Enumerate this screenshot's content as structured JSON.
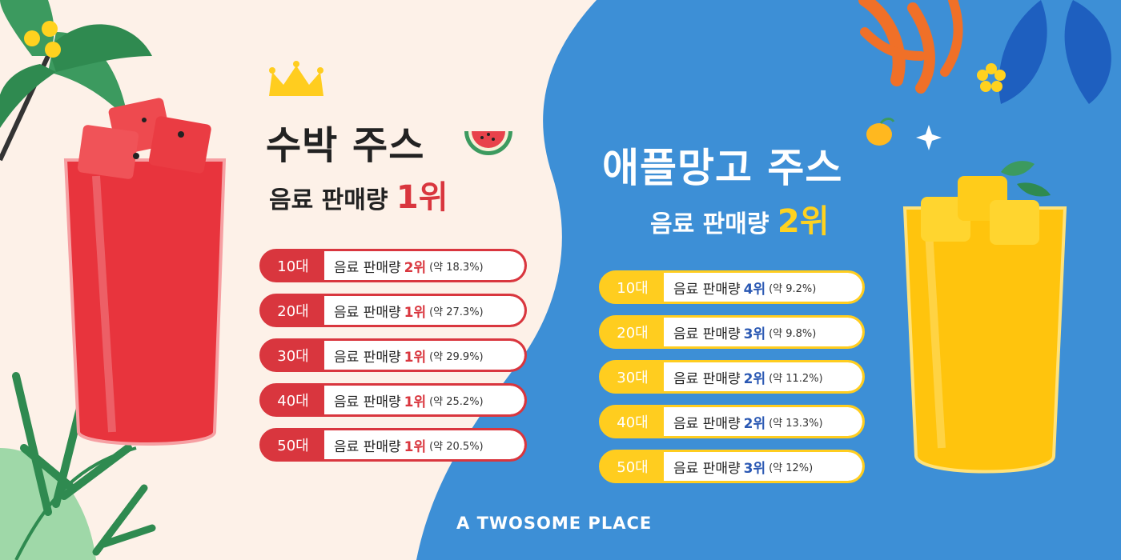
{
  "watermelon": {
    "title": "수박 주스",
    "subtitle_prefix": "음료 판매량",
    "subtitle_rank": "1위",
    "rows": [
      {
        "age": "10대",
        "label": "음료 판매량",
        "rank": "2위",
        "pct": "(약 18.3%)"
      },
      {
        "age": "20대",
        "label": "음료 판매량",
        "rank": "1위",
        "pct": "(약 27.3%)"
      },
      {
        "age": "30대",
        "label": "음료 판매량",
        "rank": "1위",
        "pct": "(약 29.9%)"
      },
      {
        "age": "40대",
        "label": "음료 판매량",
        "rank": "1위",
        "pct": "(약 25.2%)"
      },
      {
        "age": "50대",
        "label": "음료 판매량",
        "rank": "1위",
        "pct": "(약 20.5%)"
      }
    ]
  },
  "mango": {
    "title": "애플망고 주스",
    "subtitle_prefix": "음료 판매량",
    "subtitle_rank": "2위",
    "rows": [
      {
        "age": "10대",
        "label": "음료 판매량",
        "rank": "4위",
        "pct": "(약 9.2%)"
      },
      {
        "age": "20대",
        "label": "음료 판매량",
        "rank": "3위",
        "pct": "(약 9.8%)"
      },
      {
        "age": "30대",
        "label": "음료 판매량",
        "rank": "2위",
        "pct": "(약 11.2%)"
      },
      {
        "age": "40대",
        "label": "음료 판매량",
        "rank": "2위",
        "pct": "(약 13.3%)"
      },
      {
        "age": "50대",
        "label": "음료 판매량",
        "rank": "3위",
        "pct": "(약 12%)"
      }
    ]
  },
  "brand": "A TWOSOME PLACE",
  "colors": {
    "cream": "#fdf1e8",
    "blue": "#3d8fd6",
    "red": "#d9363e",
    "yellow": "#ffcd1f",
    "navy": "#2a58b3"
  },
  "icons": [
    "crown-icon",
    "watermelon-slice-icon",
    "mango-icon",
    "flower-icon",
    "leaf-icon"
  ]
}
